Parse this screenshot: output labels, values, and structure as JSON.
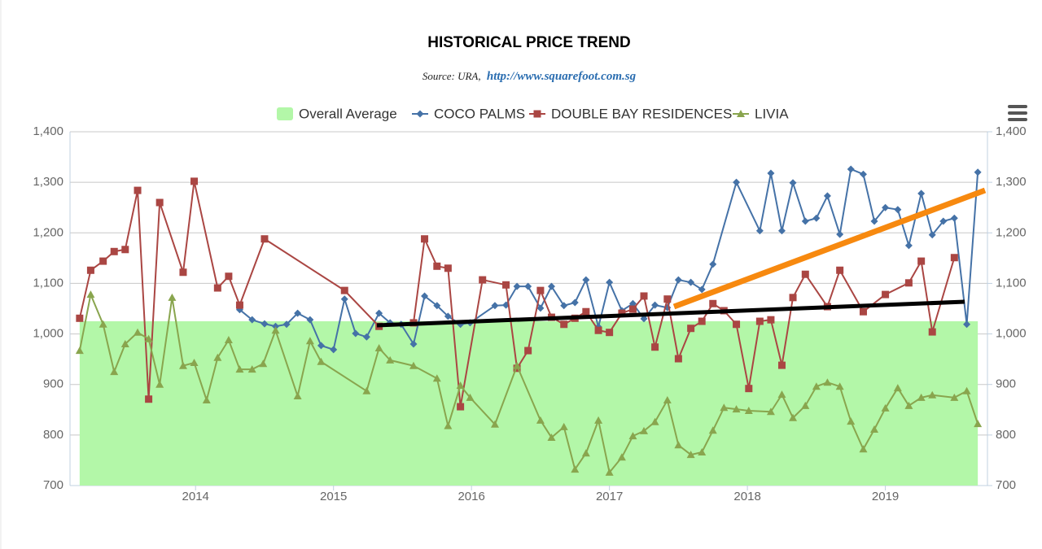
{
  "chart_data": {
    "type": "line",
    "title": "HISTORICAL PRICE TREND",
    "subtitle": "Source: URA,",
    "source_link": "http://www.squarefoot.com.sg",
    "xlim": [
      2013.09,
      2019.74
    ],
    "xticks": [
      2014,
      2015,
      2016,
      2017,
      2018,
      2019
    ],
    "ylim": [
      700,
      1400
    ],
    "yticks": [
      700,
      800,
      900,
      {
        "value": 1000,
        "label": "1,000"
      },
      {
        "value": 1100,
        "label": "1,100"
      },
      {
        "value": 1200,
        "label": "1,200"
      },
      {
        "value": 1300,
        "label": "1,300"
      },
      {
        "value": 1400,
        "label": "1,400"
      }
    ],
    "y2lim": [
      700,
      1400
    ],
    "y2ticks": [
      700,
      800,
      900,
      {
        "value": 1000,
        "label": "1,000"
      },
      {
        "value": 1100,
        "label": "1,100"
      },
      {
        "value": 1200,
        "label": "1,200"
      },
      {
        "value": 1300,
        "label": "1,300"
      },
      {
        "value": 1400,
        "label": "1,400"
      }
    ],
    "grid": true,
    "legend": "top",
    "series": [
      {
        "name": "Overall Average",
        "type": "area",
        "color": "#b3f7a8",
        "x": [
          2013.16,
          2019.67
        ],
        "values": [
          1025,
          1025
        ]
      },
      {
        "name": "COCO PALMS",
        "type": "line",
        "marker": "diamond",
        "color": "#4572a7",
        "x": [
          2014.32,
          2014.41,
          2014.5,
          2014.58,
          2014.66,
          2014.74,
          2014.83,
          2014.91,
          2015.0,
          2015.08,
          2015.16,
          2015.24,
          2015.33,
          2015.41,
          2015.49,
          2015.58,
          2015.66,
          2015.75,
          2015.83,
          2015.92,
          2015.99,
          2016.17,
          2016.25,
          2016.33,
          2016.41,
          2016.5,
          2016.58,
          2016.67,
          2016.75,
          2016.83,
          2016.92,
          2017.0,
          2017.09,
          2017.17,
          2017.25,
          2017.33,
          2017.42,
          2017.5,
          2017.59,
          2017.67,
          2017.75,
          2017.92,
          2018.09,
          2018.17,
          2018.25,
          2018.33,
          2018.42,
          2018.5,
          2018.58,
          2018.67,
          2018.75,
          2018.84,
          2018.92,
          2019.0,
          2019.09,
          2019.17,
          2019.26,
          2019.34,
          2019.42,
          2019.5,
          2019.59,
          2019.67
        ],
        "values": [
          1048,
          1028,
          1020,
          1015,
          1019,
          1041,
          1028,
          977,
          969,
          1069,
          1001,
          994,
          1041,
          1022,
          1019,
          980,
          1075,
          1056,
          1035,
          1019,
          1022,
          1056,
          1057,
          1094,
          1094,
          1051,
          1094,
          1056,
          1062,
          1107,
          1014,
          1102,
          1046,
          1060,
          1030,
          1057,
          1052,
          1107,
          1102,
          1088,
          1138,
          1300,
          1204,
          1318,
          1204,
          1299,
          1223,
          1229,
          1273,
          1197,
          1326,
          1316,
          1223,
          1250,
          1246,
          1175,
          1278,
          1196,
          1223,
          1229,
          1019,
          1320
        ]
      },
      {
        "name": "DOUBLE BAY RESIDENCES",
        "type": "line",
        "marker": "square",
        "color": "#aa4643",
        "x": [
          2013.16,
          2013.24,
          2013.33,
          2013.41,
          2013.49,
          2013.58,
          2013.66,
          2013.74,
          2013.91,
          2013.99,
          2014.16,
          2014.24,
          2014.32,
          2014.5,
          2015.08,
          2015.33,
          2015.58,
          2015.66,
          2015.75,
          2015.83,
          2015.92,
          2016.08,
          2016.25,
          2016.33,
          2016.41,
          2016.5,
          2016.58,
          2016.67,
          2016.75,
          2016.83,
          2016.92,
          2017.0,
          2017.09,
          2017.17,
          2017.25,
          2017.33,
          2017.42,
          2017.5,
          2017.59,
          2017.67,
          2017.75,
          2017.83,
          2017.92,
          2018.01,
          2018.09,
          2018.17,
          2018.25,
          2018.33,
          2018.42,
          2018.58,
          2018.67,
          2018.84,
          2019.0,
          2019.17,
          2019.26,
          2019.34,
          2019.5
        ],
        "values": [
          1031,
          1126,
          1144,
          1163,
          1167,
          1284,
          871,
          1260,
          1122,
          1302,
          1091,
          1114,
          1057,
          1188,
          1086,
          1015,
          1022,
          1188,
          1134,
          1130,
          856,
          1107,
          1097,
          932,
          967,
          1086,
          1033,
          1019,
          1031,
          1044,
          1007,
          1003,
          1041,
          1049,
          1075,
          974,
          1069,
          951,
          1011,
          1025,
          1060,
          1046,
          1019,
          892,
          1025,
          1028,
          938,
          1072,
          1118,
          1054,
          1126,
          1044,
          1078,
          1101,
          1144,
          1004,
          1151
        ]
      },
      {
        "name": "LIVIA",
        "type": "line",
        "marker": "triangle",
        "color": "#89a54e",
        "x": [
          2013.16,
          2013.24,
          2013.33,
          2013.41,
          2013.49,
          2013.58,
          2013.66,
          2013.74,
          2013.83,
          2013.91,
          2013.99,
          2014.08,
          2014.16,
          2014.24,
          2014.32,
          2014.41,
          2014.49,
          2014.58,
          2014.74,
          2014.83,
          2014.91,
          2015.24,
          2015.33,
          2015.41,
          2015.58,
          2015.75,
          2015.83,
          2015.92,
          2015.99,
          2016.17,
          2016.33,
          2016.5,
          2016.58,
          2016.67,
          2016.75,
          2016.83,
          2016.92,
          2017.0,
          2017.09,
          2017.17,
          2017.25,
          2017.33,
          2017.42,
          2017.5,
          2017.59,
          2017.67,
          2017.75,
          2017.83,
          2017.92,
          2018.01,
          2018.17,
          2018.25,
          2018.33,
          2018.42,
          2018.5,
          2018.58,
          2018.67,
          2018.75,
          2018.84,
          2018.92,
          2019.0,
          2019.09,
          2019.17,
          2019.26,
          2019.34,
          2019.5,
          2019.59,
          2019.67
        ],
        "values": [
          967,
          1078,
          1019,
          925,
          980,
          1003,
          990,
          900,
          1072,
          937,
          943,
          869,
          953,
          988,
          930,
          930,
          941,
          1007,
          877,
          986,
          945,
          887,
          972,
          948,
          937,
          912,
          818,
          898,
          874,
          821,
          937,
          829,
          795,
          816,
          732,
          764,
          829,
          726,
          756,
          798,
          808,
          826,
          869,
          780,
          761,
          766,
          809,
          854,
          851,
          848,
          846,
          880,
          834,
          858,
          896,
          904,
          896,
          827,
          772,
          811,
          853,
          893,
          858,
          874,
          879,
          874,
          887,
          822
        ]
      }
    ]
  }
}
